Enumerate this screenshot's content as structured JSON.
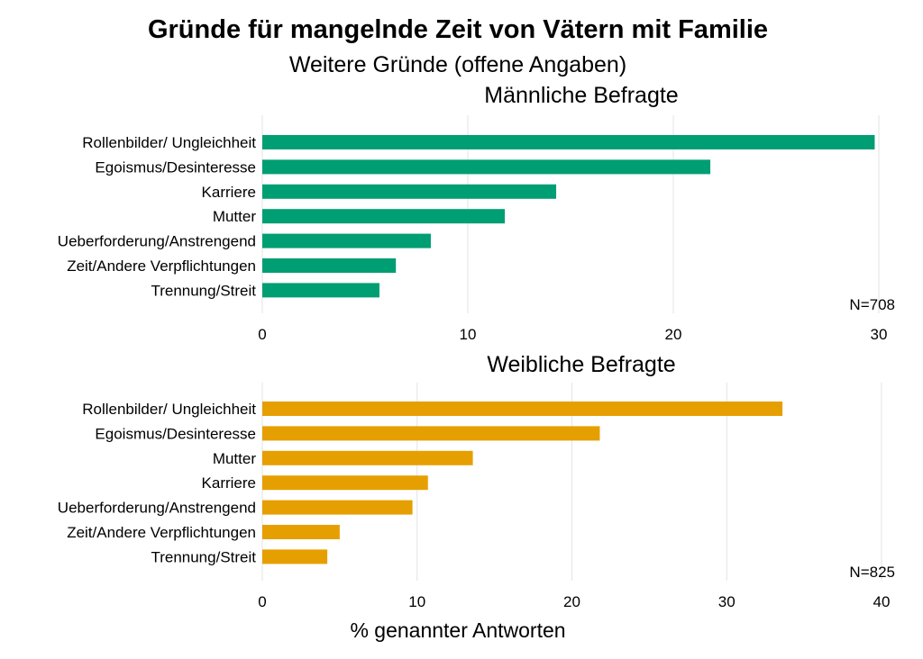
{
  "title": "Gründe für mangelnde Zeit von Vätern mit Familie",
  "subtitle": "Weitere Gründe (offene Angaben)",
  "xlabel": "% genannter Antworten",
  "chart_data": [
    {
      "type": "bar",
      "orientation": "horizontal",
      "title": "Männliche Befragte",
      "note": "N=708",
      "color": "#009E73",
      "xlim": [
        0,
        30
      ],
      "ticks": [
        0,
        10,
        20,
        30
      ],
      "grid": true,
      "categories": [
        "Rollenbilder/ Ungleichheit",
        "Egoismus/Desinteresse",
        "Karriere",
        "Mutter",
        "Ueberforderung/Anstrengend",
        "Zeit/Andere Verpflichtungen",
        "Trennung/Streit"
      ],
      "values": [
        29.8,
        21.8,
        14.3,
        11.8,
        8.2,
        6.5,
        5.7
      ]
    },
    {
      "type": "bar",
      "orientation": "horizontal",
      "title": "Weibliche Befragte",
      "note": "N=825",
      "color": "#E69F00",
      "xlim": [
        0,
        40
      ],
      "ticks": [
        0,
        10,
        20,
        30,
        40
      ],
      "grid": true,
      "categories": [
        "Rollenbilder/ Ungleichheit",
        "Egoismus/Desinteresse",
        "Mutter",
        "Karriere",
        "Ueberforderung/Anstrengend",
        "Zeit/Andere Verpflichtungen",
        "Trennung/Streit"
      ],
      "values": [
        33.6,
        21.8,
        13.6,
        10.7,
        9.7,
        5.0,
        4.2
      ]
    }
  ]
}
